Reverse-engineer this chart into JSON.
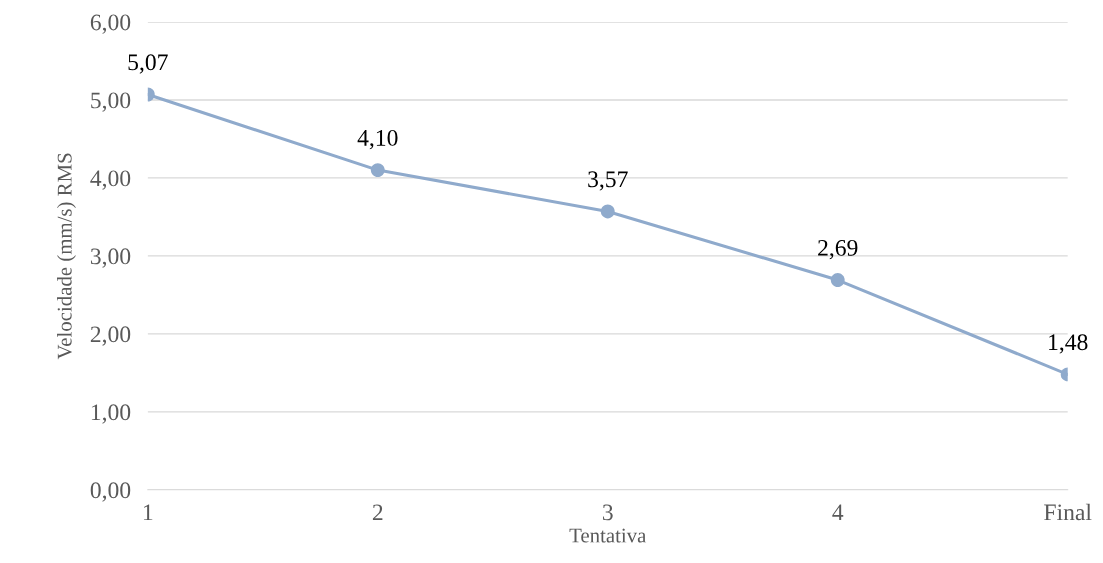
{
  "chart_data": {
    "type": "line",
    "xlabel": "Tentativa",
    "ylabel": "Velocidade (mm/s) RMS",
    "categories": [
      "1",
      "2",
      "3",
      "4",
      "Final"
    ],
    "series": [
      {
        "color": "#8faacc",
        "values": [
          5.07,
          4.1,
          3.57,
          2.69,
          1.48
        ],
        "value_labels": [
          "5,07",
          "4,10",
          "3,57",
          "2,69",
          "1,48"
        ]
      }
    ],
    "ylim": [
      0,
      6
    ],
    "yticks": [
      {
        "value": 0,
        "label": "0,00"
      },
      {
        "value": 1,
        "label": "1,00"
      },
      {
        "value": 2,
        "label": "2,00"
      },
      {
        "value": 3,
        "label": "3,00"
      },
      {
        "value": 4,
        "label": "4,00"
      },
      {
        "value": 5,
        "label": "5,00"
      },
      {
        "value": 6,
        "label": "6,00"
      }
    ],
    "grid": "y",
    "marker": "circle",
    "line_style": "solid",
    "legend": false
  }
}
